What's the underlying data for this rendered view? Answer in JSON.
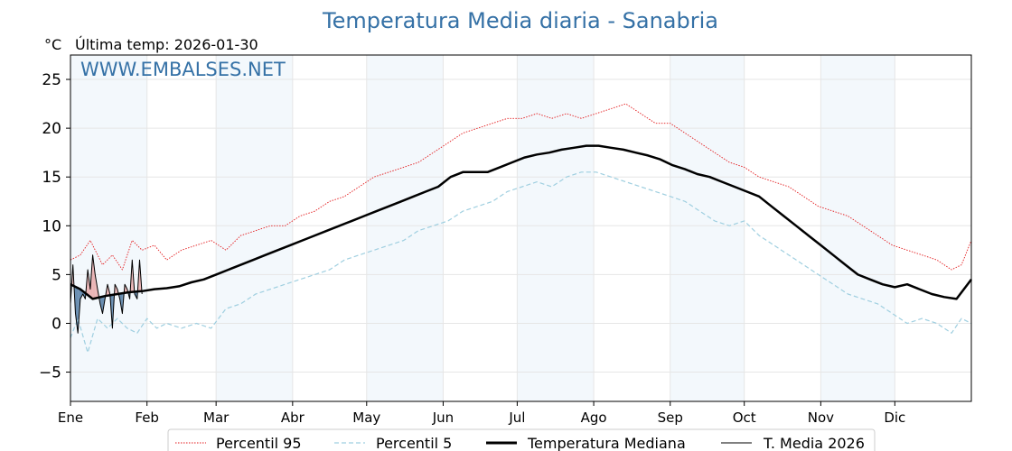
{
  "chart_data": {
    "type": "line",
    "title": "Temperatura Media diaria - Sanabria",
    "unit_label": "°C",
    "last_temp_label": "Última temp: 2026-01-30",
    "watermark": "WWW.EMBALSES.NET",
    "ylim": [
      -8,
      27.5
    ],
    "yticks": [
      -5,
      0,
      5,
      10,
      15,
      20,
      25
    ],
    "xlim": [
      1,
      366
    ],
    "months": [
      "Ene",
      "Feb",
      "Mar",
      "Abr",
      "May",
      "Jun",
      "Jul",
      "Ago",
      "Sep",
      "Oct",
      "Nov",
      "Dic"
    ],
    "month_start_days": [
      1,
      32,
      60,
      91,
      121,
      152,
      182,
      213,
      244,
      274,
      305,
      335
    ],
    "grid": true,
    "legend_position": "bottom",
    "series": [
      {
        "name": "Percentil 95",
        "style": "dotted",
        "color": "#e31a1c",
        "x": [
          1,
          5,
          9,
          14,
          18,
          22,
          26,
          30,
          35,
          40,
          46,
          52,
          58,
          64,
          70,
          76,
          82,
          88,
          94,
          100,
          106,
          112,
          118,
          124,
          130,
          136,
          142,
          148,
          154,
          160,
          166,
          172,
          178,
          184,
          190,
          196,
          202,
          208,
          214,
          220,
          226,
          232,
          238,
          244,
          250,
          256,
          262,
          268,
          274,
          280,
          286,
          292,
          298,
          304,
          310,
          316,
          322,
          328,
          334,
          340,
          346,
          352,
          358,
          362,
          366
        ],
        "y": [
          6.5,
          7.0,
          8.5,
          6.0,
          7.0,
          5.5,
          8.5,
          7.5,
          8.0,
          6.5,
          7.5,
          8.0,
          8.5,
          7.5,
          9.0,
          9.5,
          10.0,
          10.0,
          11.0,
          11.5,
          12.5,
          13.0,
          14.0,
          15.0,
          15.5,
          16.0,
          16.5,
          17.5,
          18.5,
          19.5,
          20.0,
          20.5,
          21.0,
          21.0,
          21.5,
          21.0,
          21.5,
          21.0,
          21.5,
          22.0,
          22.5,
          21.5,
          20.5,
          20.5,
          19.5,
          18.5,
          17.5,
          16.5,
          16.0,
          15.0,
          14.5,
          14.0,
          13.0,
          12.0,
          11.5,
          11.0,
          10.0,
          9.0,
          8.0,
          7.5,
          7.0,
          6.5,
          5.5,
          6.0,
          8.5
        ]
      },
      {
        "name": "Percentil 5",
        "style": "dashed",
        "color": "#9fcfe0",
        "x": [
          1,
          4,
          8,
          12,
          16,
          20,
          24,
          28,
          32,
          36,
          40,
          46,
          52,
          58,
          64,
          70,
          76,
          82,
          88,
          94,
          100,
          106,
          112,
          118,
          124,
          130,
          136,
          142,
          148,
          154,
          160,
          166,
          172,
          178,
          184,
          190,
          196,
          202,
          208,
          214,
          220,
          226,
          232,
          238,
          244,
          250,
          256,
          262,
          268,
          274,
          280,
          286,
          292,
          298,
          304,
          310,
          316,
          322,
          328,
          334,
          340,
          346,
          352,
          358,
          362,
          366
        ],
        "y": [
          -1.5,
          0.5,
          -3.0,
          0.5,
          -0.5,
          0.5,
          -0.5,
          -1.0,
          0.5,
          -0.5,
          0.0,
          -0.5,
          0.0,
          -0.5,
          1.5,
          2.0,
          3.0,
          3.5,
          4.0,
          4.5,
          5.0,
          5.5,
          6.5,
          7.0,
          7.5,
          8.0,
          8.5,
          9.5,
          10.0,
          10.5,
          11.5,
          12.0,
          12.5,
          13.5,
          14.0,
          14.5,
          14.0,
          15.0,
          15.5,
          15.5,
          15.0,
          14.5,
          14.0,
          13.5,
          13.0,
          12.5,
          11.5,
          10.5,
          10.0,
          10.5,
          9.0,
          8.0,
          7.0,
          6.0,
          5.0,
          4.0,
          3.0,
          2.5,
          2.0,
          1.0,
          0.0,
          0.5,
          0.0,
          -1.0,
          0.5,
          0.0
        ]
      },
      {
        "name": "Temperatura Mediana",
        "style": "solid-thick",
        "color": "#000000",
        "x": [
          1,
          5,
          10,
          15,
          20,
          25,
          30,
          35,
          40,
          45,
          50,
          55,
          60,
          65,
          70,
          75,
          80,
          85,
          90,
          95,
          100,
          105,
          110,
          115,
          120,
          125,
          130,
          135,
          140,
          145,
          150,
          155,
          160,
          165,
          170,
          175,
          180,
          185,
          190,
          195,
          200,
          205,
          210,
          215,
          220,
          225,
          230,
          235,
          240,
          245,
          250,
          255,
          260,
          265,
          270,
          275,
          280,
          285,
          290,
          295,
          300,
          305,
          310,
          315,
          320,
          325,
          330,
          335,
          340,
          345,
          350,
          355,
          360,
          366
        ],
        "y": [
          4.0,
          3.5,
          2.5,
          2.8,
          3.0,
          3.2,
          3.3,
          3.5,
          3.6,
          3.8,
          4.2,
          4.5,
          5.0,
          5.5,
          6.0,
          6.5,
          7.0,
          7.5,
          8.0,
          8.5,
          9.0,
          9.5,
          10.0,
          10.5,
          11.0,
          11.5,
          12.0,
          12.5,
          13.0,
          13.5,
          14.0,
          15.0,
          15.5,
          15.5,
          15.5,
          16.0,
          16.5,
          17.0,
          17.3,
          17.5,
          17.8,
          18.0,
          18.2,
          18.2,
          18.0,
          17.8,
          17.5,
          17.2,
          16.8,
          16.2,
          15.8,
          15.3,
          15.0,
          14.5,
          14.0,
          13.5,
          13.0,
          12.0,
          11.0,
          10.0,
          9.0,
          8.0,
          7.0,
          6.0,
          5.0,
          4.5,
          4.0,
          3.7,
          4.0,
          3.5,
          3.0,
          2.7,
          2.5,
          4.5
        ]
      },
      {
        "name": "T. Media 2026",
        "style": "solid-thin",
        "color": "#000000",
        "x": [
          1,
          2,
          3,
          4,
          5,
          6,
          7,
          8,
          9,
          10,
          11,
          12,
          13,
          14,
          15,
          16,
          17,
          18,
          19,
          20,
          21,
          22,
          23,
          24,
          25,
          26,
          27,
          28,
          29,
          30
        ],
        "y": [
          2.0,
          6.0,
          1.0,
          -1.0,
          2.5,
          3.0,
          2.5,
          5.5,
          3.5,
          7.0,
          5.0,
          3.5,
          2.0,
          1.0,
          2.5,
          4.0,
          3.0,
          -0.5,
          4.0,
          3.5,
          2.5,
          1.0,
          4.0,
          3.5,
          2.5,
          6.5,
          3.0,
          2.5,
          6.5,
          3.0
        ]
      }
    ]
  }
}
